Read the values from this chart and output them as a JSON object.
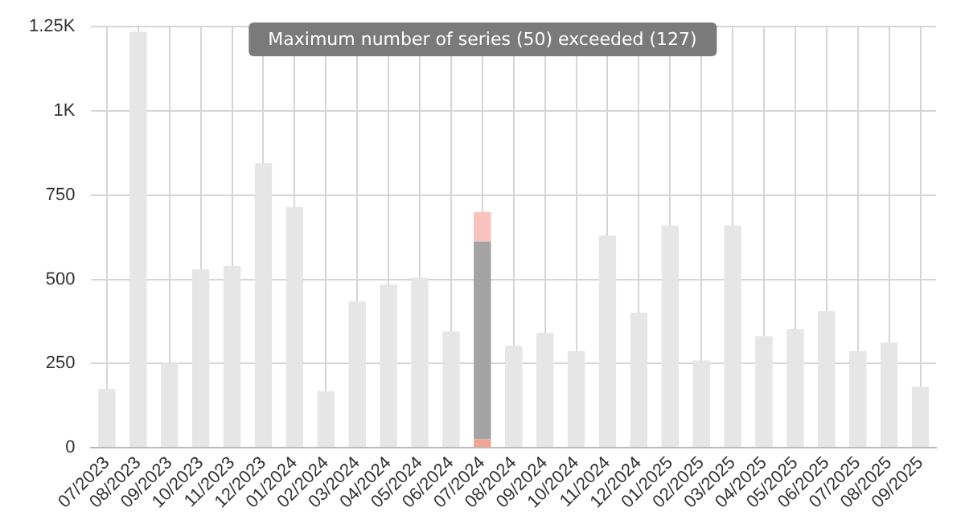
{
  "chart_data": {
    "type": "bar",
    "stacked": true,
    "categories": [
      "07/2023",
      "08/2023",
      "09/2023",
      "10/2023",
      "11/2023",
      "12/2023",
      "01/2024",
      "02/2024",
      "03/2024",
      "04/2024",
      "05/2024",
      "06/2024",
      "07/2024",
      "08/2024",
      "09/2024",
      "10/2024",
      "11/2024",
      "12/2024",
      "01/2025",
      "02/2025",
      "03/2025",
      "04/2025",
      "05/2025",
      "06/2025",
      "07/2025",
      "08/2025",
      "09/2025"
    ],
    "series": [
      {
        "color": "#e6e6e6",
        "values": [
          175,
          1235,
          252,
          530,
          540,
          845,
          715,
          168,
          435,
          485,
          505,
          345,
          null,
          303,
          340,
          287,
          630,
          401,
          660,
          259,
          660,
          331,
          352,
          405,
          287,
          312,
          181
        ]
      },
      {
        "color": "#f3a394",
        "values": [
          null,
          null,
          null,
          null,
          null,
          null,
          null,
          null,
          null,
          null,
          null,
          null,
          25,
          null,
          null,
          null,
          null,
          null,
          null,
          null,
          null,
          null,
          null,
          null,
          null,
          null,
          null
        ]
      },
      {
        "color": "#a3a3a3",
        "values": [
          null,
          null,
          null,
          null,
          null,
          null,
          null,
          null,
          null,
          null,
          null,
          null,
          587,
          null,
          null,
          null,
          null,
          null,
          null,
          null,
          null,
          null,
          null,
          null,
          null,
          null,
          null
        ]
      },
      {
        "color": "#f8c3bd",
        "values": [
          null,
          null,
          null,
          null,
          null,
          null,
          null,
          null,
          null,
          null,
          null,
          null,
          88,
          null,
          null,
          null,
          null,
          null,
          null,
          null,
          null,
          null,
          null,
          null,
          null,
          null,
          null
        ]
      }
    ],
    "ylim": [
      0,
      1250
    ],
    "yticks": [
      0,
      {
        "value": 250,
        "label": "250"
      },
      {
        "value": 500,
        "label": "500"
      },
      {
        "value": 750,
        "label": "750"
      },
      {
        "value": 1000,
        "label": "1K"
      },
      {
        "value": 1250,
        "label": "1.25K"
      }
    ],
    "grid": true,
    "annotations": [
      "Maximum number of series (50) exceeded (127)"
    ]
  }
}
